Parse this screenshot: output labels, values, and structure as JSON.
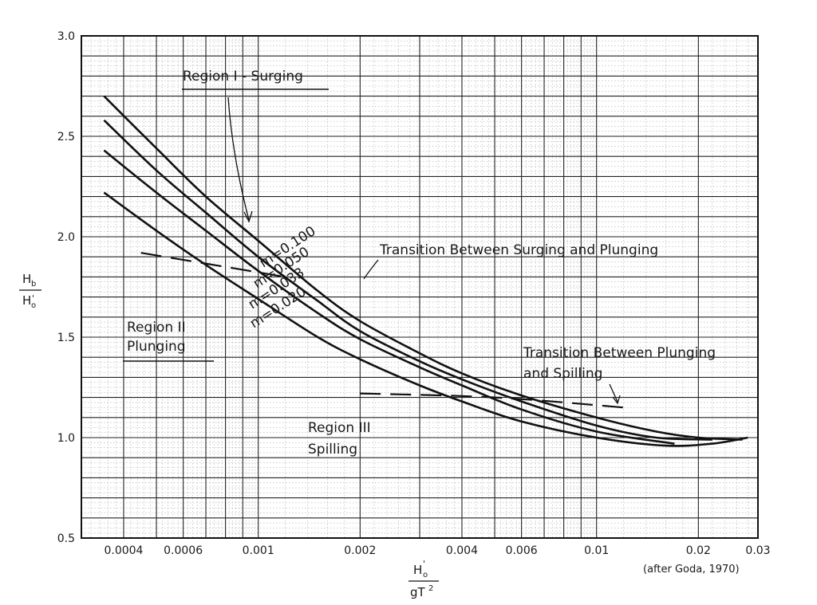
{
  "chart_data": {
    "type": "line",
    "title": "",
    "source_note": "(after Goda, 1970)",
    "xscale": "log",
    "xlim": [
      0.0003,
      0.03
    ],
    "ylim": [
      0.5,
      3.0
    ],
    "xtick_labels": [
      "0.0004",
      "0.0006",
      "0.001",
      "0.002",
      "0.004",
      "0.006",
      "0.01",
      "0.02",
      "0.03"
    ],
    "xtick_values": [
      0.0004,
      0.0006,
      0.001,
      0.002,
      0.004,
      0.006,
      0.01,
      0.02,
      0.03
    ],
    "ytick_labels": [
      "0.5",
      "1.0",
      "1.5",
      "2.0",
      "2.5",
      "3.0"
    ],
    "ytick_values": [
      0.5,
      1.0,
      1.5,
      2.0,
      2.5,
      3.0
    ],
    "ylabel": {
      "numerator": "H",
      "numerator_sub": "b",
      "denominator": "H",
      "denominator_sub": "o",
      "denominator_prime": "'"
    },
    "xlabel": {
      "numerator": "H",
      "numerator_sub": "o",
      "numerator_prime": "'",
      "denominator": "gT",
      "denominator_sup": "2"
    },
    "grid": true,
    "series": [
      {
        "name": "m=0.100",
        "x": [
          0.00035,
          0.0005,
          0.0007,
          0.001,
          0.0015,
          0.002,
          0.003,
          0.004,
          0.006,
          0.01,
          0.015,
          0.02,
          0.027
        ],
        "y": [
          2.7,
          2.44,
          2.2,
          1.98,
          1.73,
          1.58,
          1.42,
          1.32,
          1.21,
          1.1,
          1.03,
          1.0,
          0.99
        ]
      },
      {
        "name": "m=0.050",
        "x": [
          0.00035,
          0.0005,
          0.0007,
          0.001,
          0.0015,
          0.002,
          0.003,
          0.004,
          0.006,
          0.01,
          0.015,
          0.022
        ],
        "y": [
          2.58,
          2.33,
          2.12,
          1.9,
          1.68,
          1.53,
          1.38,
          1.29,
          1.18,
          1.06,
          1.0,
          0.99
        ]
      },
      {
        "name": "m=0.033",
        "x": [
          0.00035,
          0.0005,
          0.0007,
          0.001,
          0.0015,
          0.002,
          0.003,
          0.004,
          0.006,
          0.01,
          0.017
        ],
        "y": [
          2.43,
          2.22,
          2.03,
          1.83,
          1.62,
          1.49,
          1.35,
          1.26,
          1.14,
          1.03,
          0.97
        ]
      },
      {
        "name": "m=0.020",
        "x": [
          0.00035,
          0.0005,
          0.0007,
          0.001,
          0.0015,
          0.002,
          0.003,
          0.004,
          0.006,
          0.01,
          0.016,
          0.022,
          0.028
        ],
        "y": [
          2.22,
          2.03,
          1.86,
          1.69,
          1.5,
          1.39,
          1.26,
          1.18,
          1.08,
          1.0,
          0.96,
          0.97,
          1.0
        ]
      }
    ],
    "transition_lines": [
      {
        "name": "surging-plunging",
        "x": [
          0.00045,
          0.0008,
          0.0012
        ],
        "y": [
          1.92,
          1.85,
          1.8
        ]
      },
      {
        "name": "plunging-spilling",
        "x": [
          0.002,
          0.005,
          0.012
        ],
        "y": [
          1.22,
          1.2,
          1.15
        ]
      }
    ],
    "annotations": {
      "region1": "Region I - Surging",
      "region2_line1": "Region II",
      "region2_line2": "Plunging",
      "region3_line1": "Region III",
      "region3_line2": "Spilling",
      "transition1": "Transition Between Surging and Plunging",
      "transition2_line1": "Transition Between Plunging",
      "transition2_line2": "and Spilling",
      "m1": "m=0.100",
      "m2": "m=0.050",
      "m3": "m=0.033",
      "m4": "m=0.020"
    },
    "colors": {
      "line": "#111111",
      "grid_major": "#222222",
      "grid_minor": "#9a9a9a",
      "background": "#ffffff"
    }
  }
}
